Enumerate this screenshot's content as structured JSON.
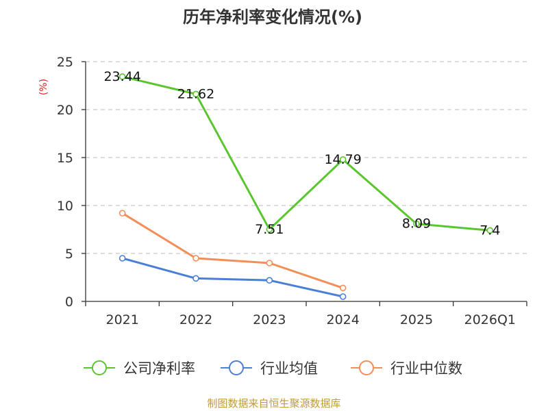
{
  "chart_data": {
    "type": "line",
    "title": "历年净利率变化情况(%)",
    "ylabel": "(%)",
    "categories": [
      "2021",
      "2022",
      "2023",
      "2024",
      "2025",
      "2026Q1"
    ],
    "ylim": [
      0,
      25
    ],
    "yticks": [
      0,
      5,
      10,
      15,
      20,
      25
    ],
    "grid": true,
    "legend_position": "bottom",
    "series": [
      {
        "name": "公司净利率",
        "color": "#5ac62e",
        "values": [
          23.44,
          21.62,
          7.51,
          14.79,
          8.09,
          7.4
        ],
        "labels": [
          "23.44",
          "21.62",
          "7.51",
          "14.79",
          "8.09",
          "7.4"
        ]
      },
      {
        "name": "行业均值",
        "color": "#4a7fd8",
        "values": [
          4.5,
          2.4,
          2.2,
          0.5,
          null,
          null
        ]
      },
      {
        "name": "行业中位数",
        "color": "#f58d56",
        "values": [
          9.2,
          4.5,
          4.0,
          1.4,
          null,
          null
        ]
      }
    ]
  },
  "source": "制图数据来自恒生聚源数据库"
}
